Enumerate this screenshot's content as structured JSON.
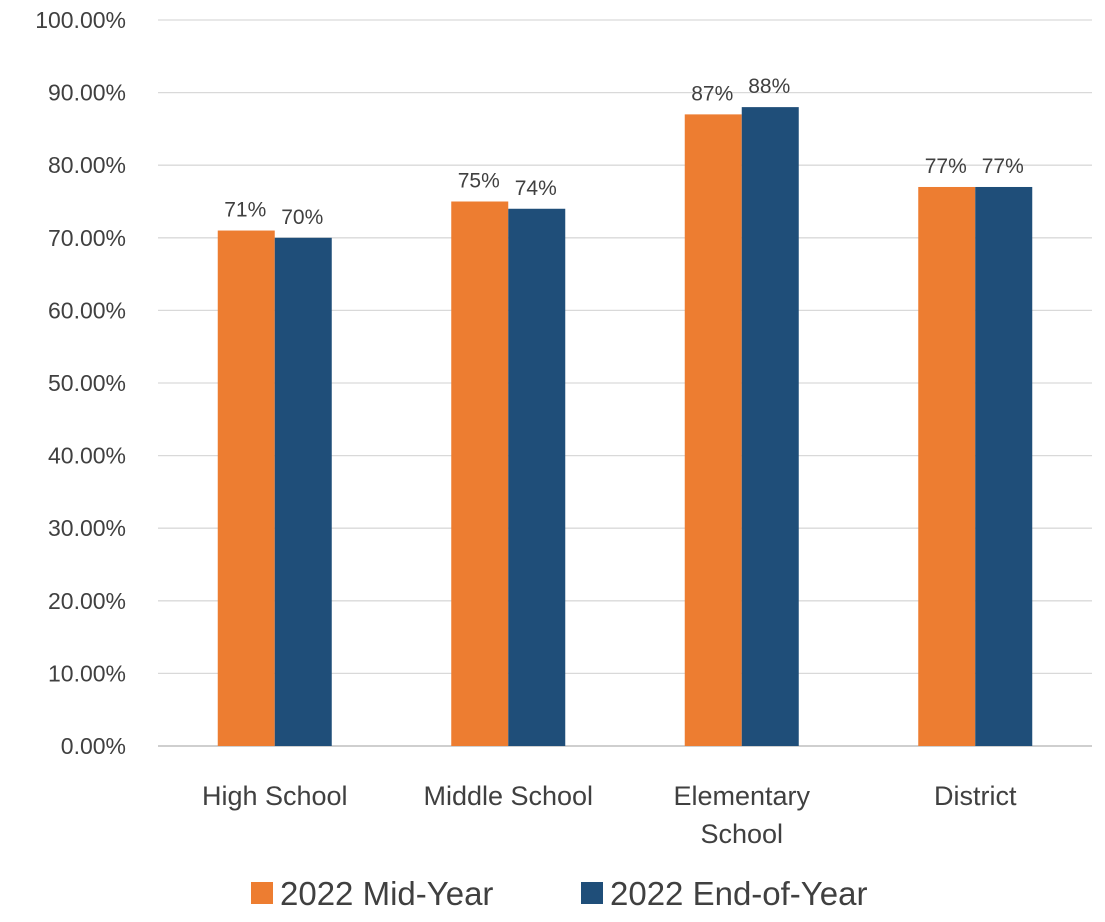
{
  "chart_data": {
    "type": "bar",
    "title": "",
    "xlabel": "",
    "ylabel": "",
    "categories": [
      [
        "High School"
      ],
      [
        "Middle School"
      ],
      [
        "Elementary",
        "School"
      ],
      [
        "District"
      ]
    ],
    "series": [
      {
        "name": "2022 Mid-Year",
        "color": "#ed7d31",
        "values": [
          71,
          75,
          87,
          77
        ],
        "labels": [
          "71%",
          "75%",
          "87%",
          "77%"
        ]
      },
      {
        "name": "2022 End-of-Year",
        "color": "#1f4e79",
        "values": [
          70,
          74,
          88,
          77
        ],
        "labels": [
          "70%",
          "74%",
          "88%",
          "77%"
        ]
      }
    ],
    "ylim": [
      0,
      100
    ],
    "yticks": [
      0,
      10,
      20,
      30,
      40,
      50,
      60,
      70,
      80,
      90,
      100
    ],
    "ytick_labels": [
      "0.00%",
      "10.00%",
      "20.00%",
      "30.00%",
      "40.00%",
      "50.00%",
      "60.00%",
      "70.00%",
      "80.00%",
      "90.00%",
      "100.00%"
    ],
    "grid": true,
    "legend": "bottom"
  }
}
